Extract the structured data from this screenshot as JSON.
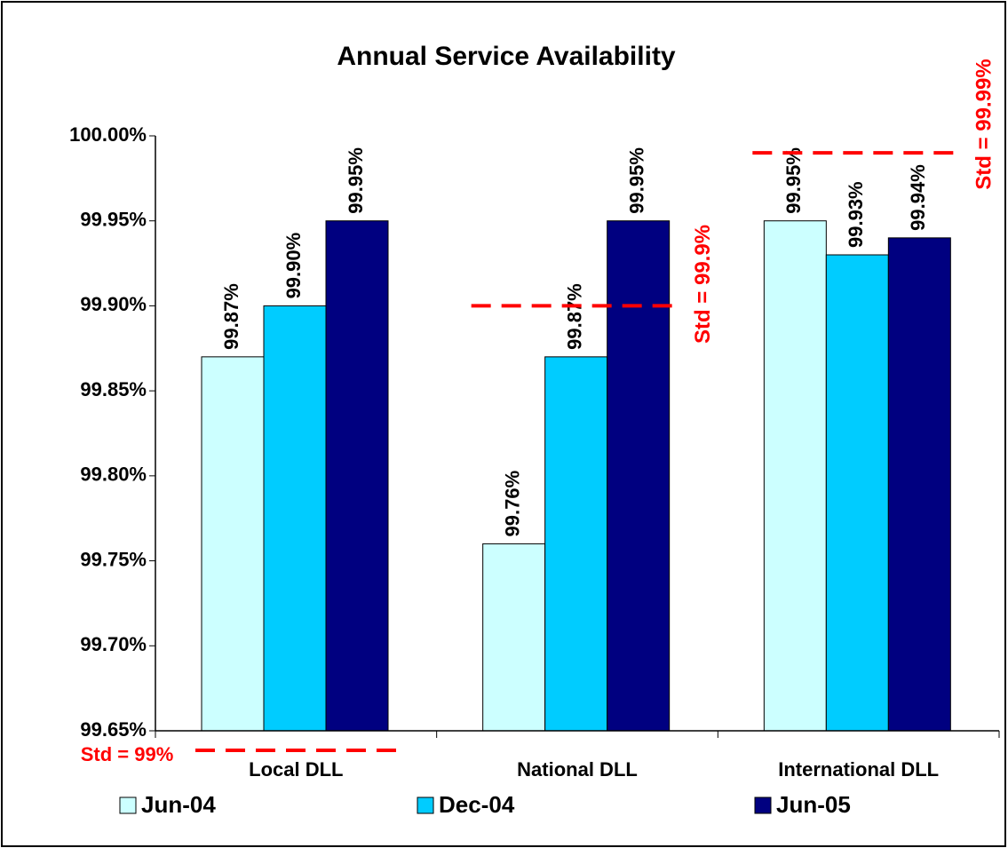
{
  "chart_data": {
    "type": "bar",
    "title": "Annual Service Availability",
    "categories": [
      "Local DLL",
      "National DLL",
      "International DLL"
    ],
    "series": [
      {
        "name": "Jun-04",
        "color": "#ccffff",
        "values": [
          99.87,
          99.76,
          99.95
        ],
        "value_labels": [
          "99.87%",
          "99.76%",
          "99.95%"
        ]
      },
      {
        "name": "Dec-04",
        "color": "#00ccff",
        "values": [
          99.9,
          99.87,
          99.93
        ],
        "value_labels": [
          "99.90%",
          "99.87%",
          "99.93%"
        ]
      },
      {
        "name": "Jun-05",
        "color": "#000080",
        "values": [
          99.95,
          99.95,
          99.94
        ],
        "value_labels": [
          "99.95%",
          "99.95%",
          "99.94%"
        ]
      }
    ],
    "ylim": [
      99.65,
      100.0
    ],
    "yticks": [
      {
        "value": 99.65,
        "label": "99.65%"
      },
      {
        "value": 99.7,
        "label": "99.70%"
      },
      {
        "value": 99.75,
        "label": "99.75%"
      },
      {
        "value": 99.8,
        "label": "99.80%"
      },
      {
        "value": 99.85,
        "label": "99.85%"
      },
      {
        "value": 99.9,
        "label": "99.90%"
      },
      {
        "value": 99.95,
        "label": "99.95%"
      },
      {
        "value": 100.0,
        "label": "100.00%"
      }
    ],
    "annotations": [
      {
        "text": "Std = 99%"
      },
      {
        "text": "Std = 99.9%",
        "value": 99.9
      },
      {
        "text": "Std = 99.99%",
        "value": 99.99
      }
    ],
    "legend": "bottom"
  }
}
